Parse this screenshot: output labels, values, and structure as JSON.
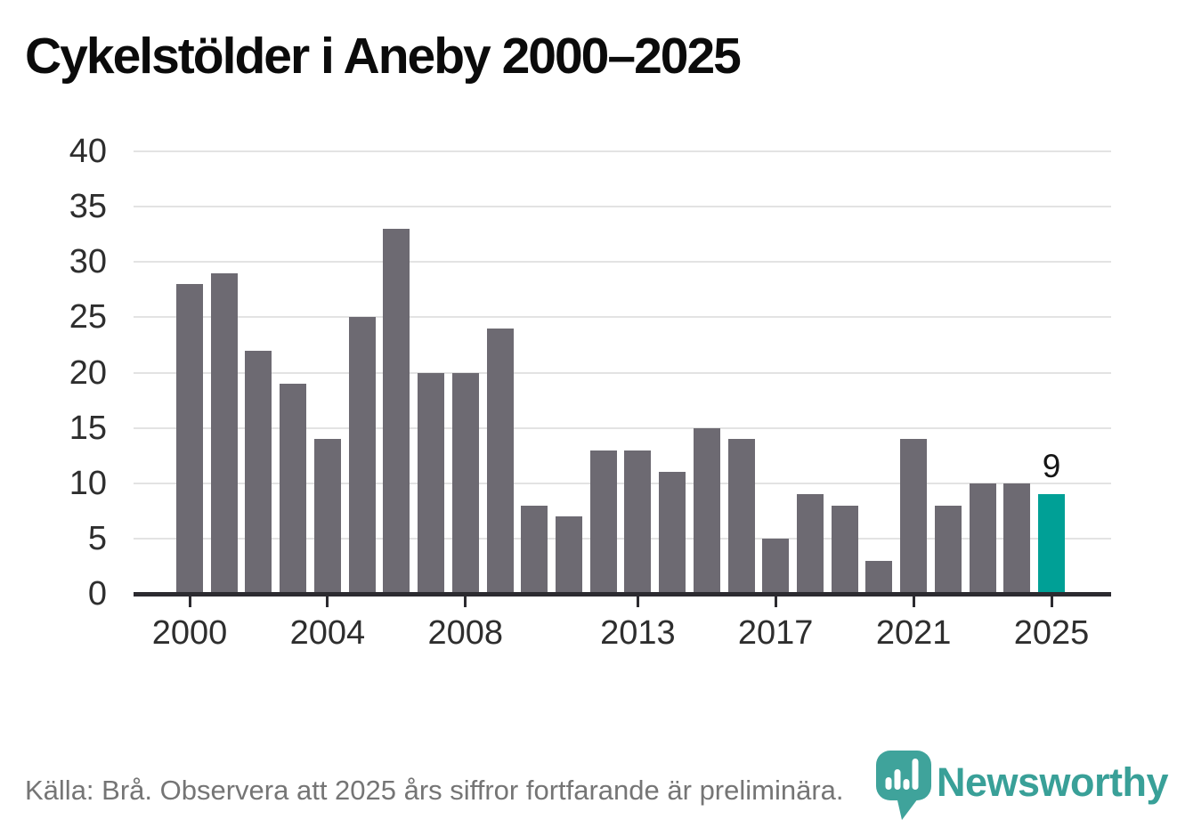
{
  "title": "Cykelstölder i Aneby 2000–2025",
  "chart_data": {
    "type": "bar",
    "title": "Cykelstölder i Aneby 2000–2025",
    "categories": [
      "2000",
      "2001",
      "2002",
      "2003",
      "2004",
      "2005",
      "2006",
      "2007",
      "2008",
      "2009",
      "2010",
      "2011",
      "2012",
      "2013",
      "2014",
      "2015",
      "2016",
      "2017",
      "2018",
      "2019",
      "2020",
      "2021",
      "2022",
      "2023",
      "2024",
      "2025"
    ],
    "values": [
      28,
      29,
      22,
      19,
      14,
      25,
      33,
      20,
      20,
      24,
      8,
      7,
      13,
      13,
      11,
      15,
      14,
      5,
      9,
      8,
      3,
      14,
      8,
      10,
      10,
      9
    ],
    "xlabel": "",
    "ylabel": "",
    "ylim": [
      0,
      40
    ],
    "yticks": [
      0,
      5,
      10,
      15,
      20,
      25,
      30,
      35,
      40
    ],
    "xticks": [
      "2000",
      "2004",
      "2008",
      "2013",
      "2017",
      "2021",
      "2025"
    ],
    "xtick_indices": [
      0,
      4,
      8,
      13,
      17,
      21,
      25
    ],
    "grid": true,
    "legend": false,
    "highlight_index": 25,
    "highlight_value_label": "9",
    "colors": {
      "bar": "#6d6a72",
      "highlight": "#00a096",
      "gridline": "#e3e3e3",
      "axis": "#2c2b30"
    }
  },
  "footer": {
    "source_note": "Källa: Brå. Observera att 2025 års siffror fortfarande är preliminära."
  },
  "logo": {
    "text": "Newsworthy",
    "color": "#39a098",
    "icon": "newsworthy-pin-bar-chart-icon"
  }
}
